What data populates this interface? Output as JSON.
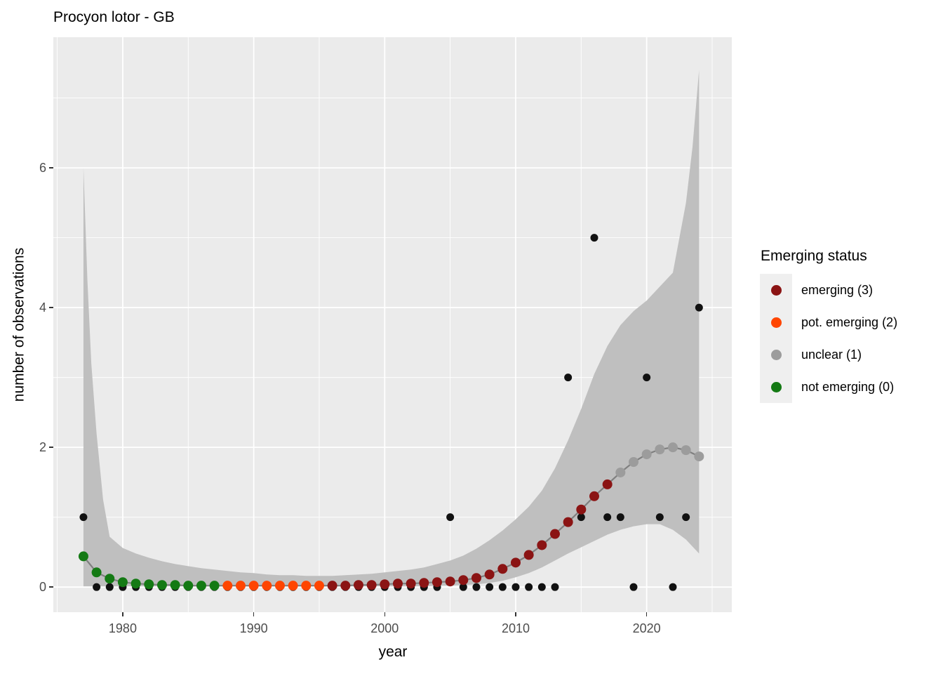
{
  "chart_data": {
    "type": "scatter",
    "title": "Procyon lotor - GB",
    "xlabel": "year",
    "ylabel": "number of observations",
    "grid": true,
    "legend_position": "right",
    "x_range": [
      1974.7,
      2026.5
    ],
    "y_range": [
      -0.36,
      7.87
    ],
    "x_ticks": [
      1980,
      1990,
      2000,
      2010,
      2020
    ],
    "x_minor_ticks": [
      1975,
      1985,
      1995,
      2005,
      2015,
      2025
    ],
    "y_ticks": [
      0,
      2,
      4,
      6
    ],
    "y_minor_ticks": [
      1,
      3,
      5,
      7
    ],
    "colors": {
      "panel": "#EBEBEB",
      "grid": "#FFFFFF",
      "ribbon": "#BFBFBF",
      "trend_line": "#7F7F7F",
      "observation": "#111111",
      "tick_text": "#4D4D4D",
      "status": {
        "emerging": "#8B1414",
        "pot_emerging": "#FF4500",
        "unclear": "#9C9C9C",
        "not_emerging": "#147A14"
      }
    },
    "legend": {
      "title": "Emerging status",
      "items": [
        {
          "label": "emerging (3)",
          "status": "emerging"
        },
        {
          "label": "pot. emerging (2)",
          "status": "pot_emerging"
        },
        {
          "label": "unclear (1)",
          "status": "unclear"
        },
        {
          "label": "not emerging (0)",
          "status": "not_emerging"
        }
      ]
    },
    "observations": {
      "years": [
        1977,
        1978,
        1979,
        1980,
        1981,
        1982,
        1983,
        1984,
        1985,
        1986,
        1987,
        1988,
        1989,
        1990,
        1991,
        1992,
        1993,
        1994,
        1995,
        1996,
        1997,
        1998,
        1999,
        2000,
        2001,
        2002,
        2003,
        2004,
        2005,
        2006,
        2007,
        2008,
        2009,
        2010,
        2011,
        2012,
        2013,
        2014,
        2015,
        2016,
        2017,
        2018,
        2019,
        2020,
        2021,
        2022,
        2023,
        2024
      ],
      "counts": [
        1,
        0,
        0,
        0,
        0,
        0,
        0,
        0,
        0,
        0,
        0,
        0,
        0,
        0,
        0,
        0,
        0,
        0,
        0,
        0,
        0,
        0,
        0,
        0,
        0,
        0,
        0,
        0,
        1,
        0,
        0,
        0,
        0,
        0,
        0,
        0,
        0,
        3,
        1,
        5,
        1,
        1,
        0,
        3,
        1,
        0,
        1,
        4
      ]
    },
    "fitted": {
      "years": [
        1977,
        1978,
        1979,
        1980,
        1981,
        1982,
        1983,
        1984,
        1985,
        1986,
        1987,
        1988,
        1989,
        1990,
        1991,
        1992,
        1993,
        1994,
        1995,
        1996,
        1997,
        1998,
        1999,
        2000,
        2001,
        2002,
        2003,
        2004,
        2005,
        2006,
        2007,
        2008,
        2009,
        2010,
        2011,
        2012,
        2013,
        2014,
        2015,
        2016,
        2017,
        2018,
        2019,
        2020,
        2021,
        2022,
        2023,
        2024
      ],
      "values": [
        0.44,
        0.21,
        0.12,
        0.07,
        0.05,
        0.04,
        0.03,
        0.03,
        0.02,
        0.02,
        0.02,
        0.02,
        0.02,
        0.02,
        0.02,
        0.02,
        0.02,
        0.02,
        0.02,
        0.02,
        0.02,
        0.03,
        0.03,
        0.04,
        0.05,
        0.05,
        0.06,
        0.07,
        0.08,
        0.1,
        0.13,
        0.18,
        0.26,
        0.35,
        0.46,
        0.6,
        0.76,
        0.93,
        1.11,
        1.3,
        1.47,
        1.64,
        1.79,
        1.9,
        1.97,
        2.0,
        1.96,
        1.87
      ],
      "status_segments": {
        "not_emerging": [
          1977,
          1987
        ],
        "pot_emerging": [
          1988,
          1995
        ],
        "emerging": [
          1996,
          2017
        ],
        "unclear": [
          2018,
          2024
        ]
      }
    },
    "ribbon": {
      "x": [
        1977,
        1977.3,
        1977.6,
        1978,
        1978.5,
        1979,
        1980,
        1981,
        1982,
        1983,
        1984,
        1985,
        1986,
        1987,
        1988,
        1989,
        1990,
        1991,
        1992,
        1993,
        1994,
        1995,
        1996,
        1997,
        1998,
        1999,
        2000,
        2001,
        2002,
        2003,
        2004,
        2005,
        2006,
        2007,
        2008,
        2009,
        2010,
        2011,
        2012,
        2013,
        2014,
        2015,
        2016,
        2017,
        2018,
        2019,
        2020,
        2021,
        2022,
        2023,
        2023.5,
        2024
      ],
      "hi": [
        6.0,
        4.4,
        3.2,
        2.2,
        1.25,
        0.72,
        0.56,
        0.48,
        0.42,
        0.37,
        0.33,
        0.3,
        0.27,
        0.25,
        0.23,
        0.21,
        0.2,
        0.18,
        0.17,
        0.17,
        0.16,
        0.16,
        0.16,
        0.17,
        0.18,
        0.19,
        0.21,
        0.23,
        0.25,
        0.28,
        0.33,
        0.38,
        0.45,
        0.55,
        0.67,
        0.81,
        0.97,
        1.15,
        1.38,
        1.7,
        2.1,
        2.55,
        3.05,
        3.45,
        3.75,
        3.95,
        4.1,
        4.3,
        4.5,
        5.5,
        6.3,
        7.4
      ],
      "lo": [
        0.01,
        0.01,
        0.01,
        0.01,
        0.01,
        0.01,
        0.01,
        0.01,
        0.01,
        0.01,
        0.01,
        0.01,
        0.01,
        0.01,
        0.01,
        0.01,
        0.01,
        0.01,
        0.01,
        0.01,
        0.01,
        0.01,
        0.01,
        0.01,
        0.01,
        0.01,
        0.01,
        0.01,
        0.01,
        0.01,
        0.02,
        0.02,
        0.03,
        0.04,
        0.06,
        0.09,
        0.14,
        0.2,
        0.28,
        0.38,
        0.48,
        0.57,
        0.66,
        0.75,
        0.82,
        0.87,
        0.9,
        0.9,
        0.82,
        0.68,
        0.58,
        0.48
      ]
    }
  }
}
